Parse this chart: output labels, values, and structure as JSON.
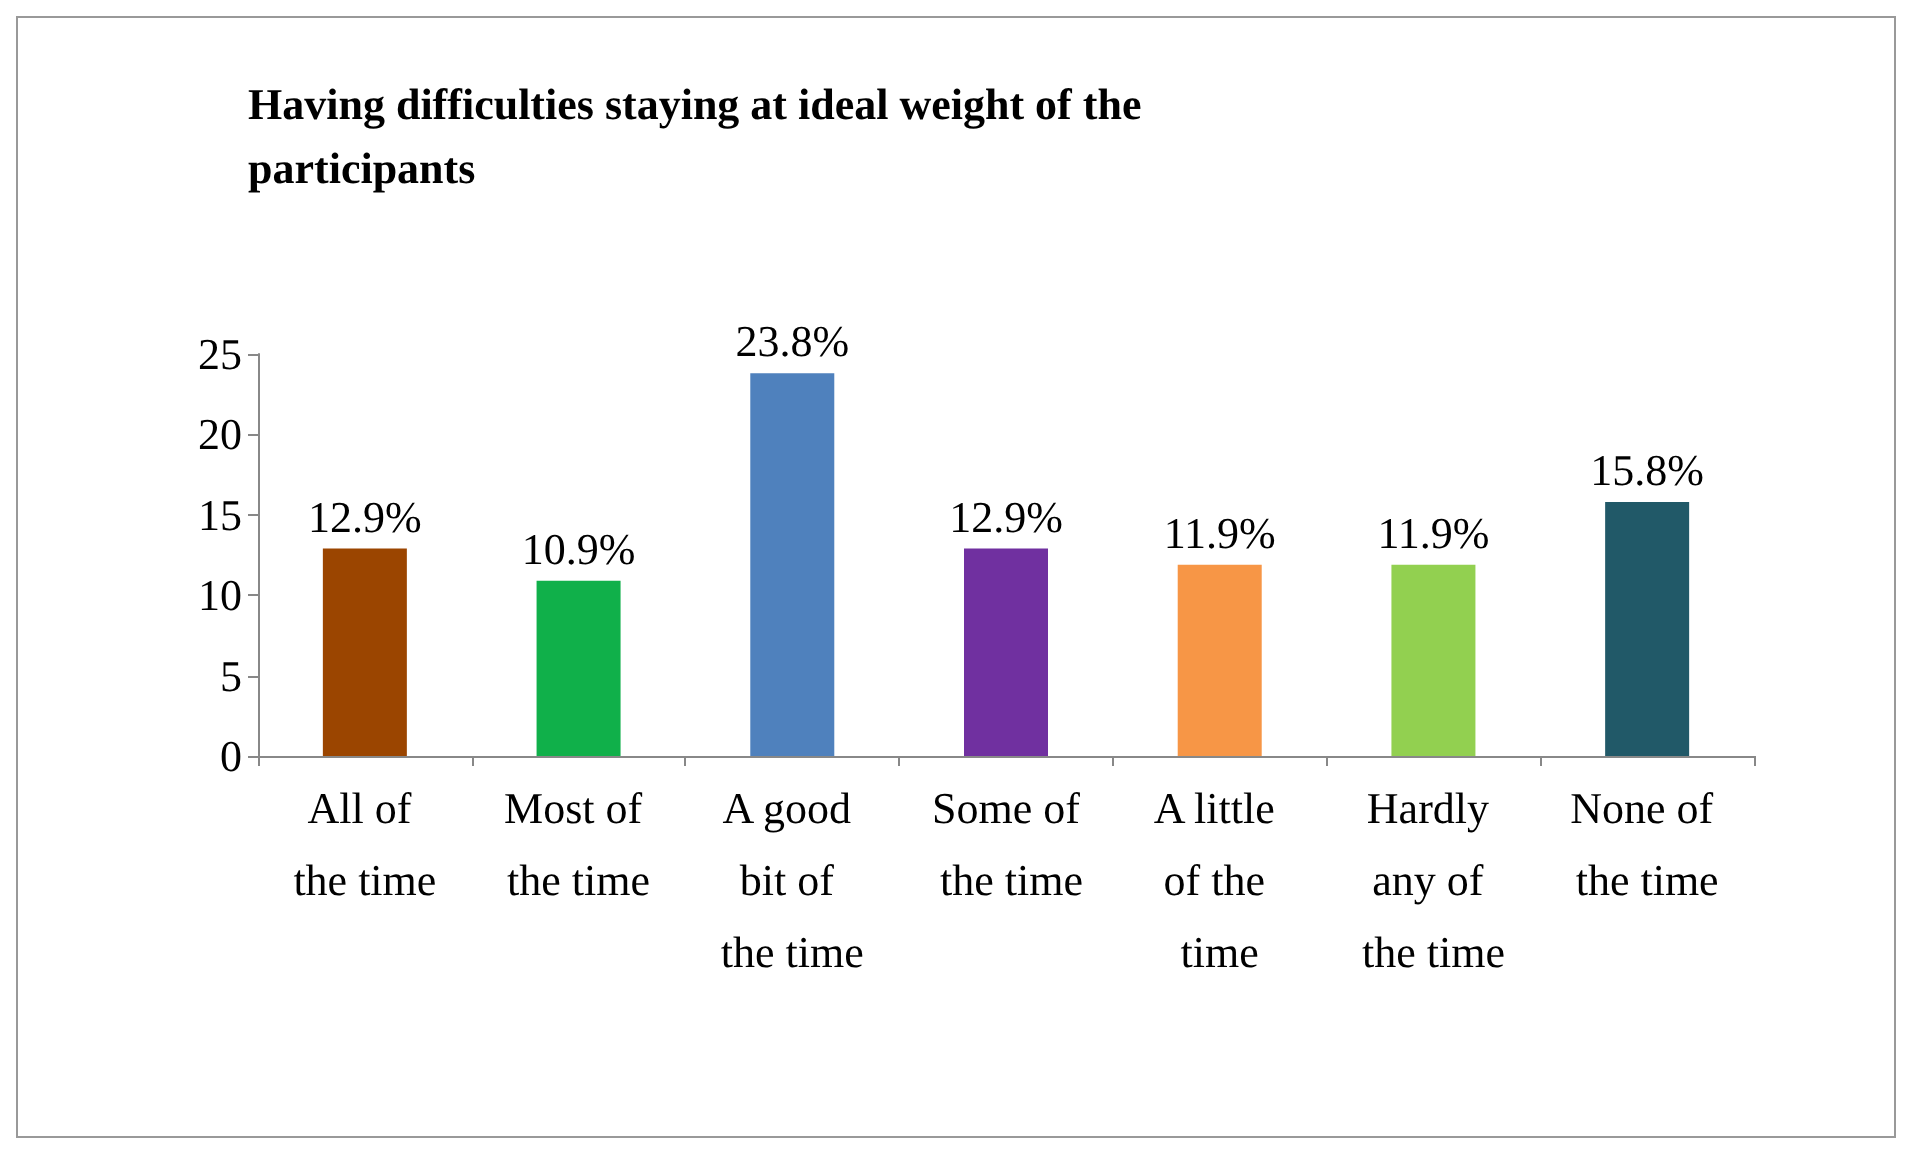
{
  "chart_data": {
    "type": "bar",
    "title": "Having difficulties staying at ideal weight of the participants",
    "categories": [
      "All of the time",
      "Most of the time",
      "A good bit of the time",
      "Some of the time",
      "A little of the time",
      "Hardly any of the time",
      "None of the time"
    ],
    "values": [
      12.9,
      10.9,
      23.8,
      12.9,
      11.9,
      11.9,
      15.8
    ],
    "colors": [
      "#9b4500",
      "#10b04a",
      "#4f81bd",
      "#7030a0",
      "#f79646",
      "#92d050",
      "#215968"
    ],
    "value_labels": [
      "12.9%",
      "10.9%",
      "23.8%",
      "12.9%",
      "11.9%",
      "11.9%",
      "15.8%"
    ],
    "ylim": [
      0,
      25
    ],
    "yticks": [
      0,
      5,
      10,
      15,
      20,
      25
    ],
    "grid": false
  }
}
